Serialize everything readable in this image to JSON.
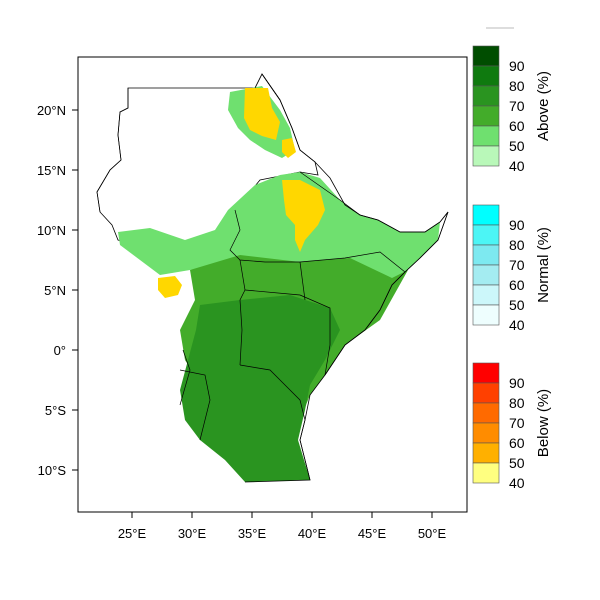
{
  "map": {
    "lon_ticks": [
      "25°E",
      "30°E",
      "35°E",
      "40°E",
      "45°E",
      "50°E"
    ],
    "lat_ticks": [
      "20°N",
      "15°N",
      "10°N",
      "5°N",
      "0°",
      "5°S",
      "10°S"
    ]
  },
  "legend": {
    "above": {
      "title": "Above (%)",
      "labels": [
        "90",
        "80",
        "70",
        "60",
        "50",
        "40"
      ],
      "colors": [
        "#004d00",
        "#0f7a0f",
        "#2a9420",
        "#43ac2a",
        "#6fe06f",
        "#b9f8b9"
      ]
    },
    "normal": {
      "title": "Normal (%)",
      "labels": [
        "90",
        "80",
        "70",
        "60",
        "50",
        "40"
      ],
      "colors": [
        "#00ffff",
        "#4cf5f5",
        "#7de9f0",
        "#a4ecf1",
        "#ccf7fa",
        "#eefefe"
      ]
    },
    "below": {
      "title": "Below (%)",
      "labels": [
        "90",
        "80",
        "70",
        "60",
        "50",
        "40"
      ],
      "colors": [
        "#ff0000",
        "#ff4000",
        "#ff6a00",
        "#ff8c00",
        "#ffb000",
        "#ffff80"
      ]
    }
  }
}
